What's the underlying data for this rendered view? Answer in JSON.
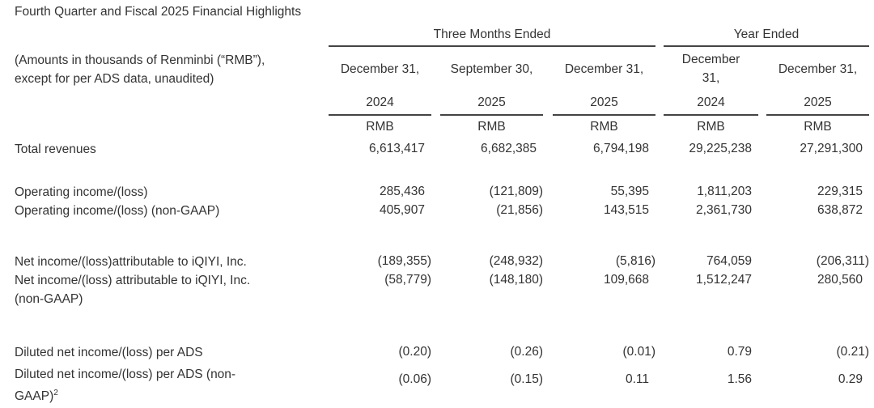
{
  "title": "Fourth Quarter and Fiscal 2025 Financial Highlights",
  "groups": [
    "Three Months Ended",
    "Year Ended"
  ],
  "note_line1": "(Amounts in thousands of Renminbi (“RMB”),",
  "note_line2": "except for per ADS data, unaudited)",
  "columns": [
    {
      "date": "December 31,",
      "year": "2024",
      "unit": "RMB"
    },
    {
      "date": "September 30,",
      "year": "2025",
      "unit": "RMB"
    },
    {
      "date": "December 31,",
      "year": "2025",
      "unit": "RMB"
    },
    {
      "date": "December 31,",
      "year": "2024",
      "unit": "RMB"
    },
    {
      "date": "December 31,",
      "year": "2025",
      "unit": "RMB"
    }
  ],
  "rows": [
    {
      "label": [
        "Total revenues"
      ],
      "values": [
        "6,613,417",
        "6,682,385",
        "6,794,198",
        "29,225,238",
        "27,291,300"
      ]
    },
    {
      "label": [
        "Operating income/(loss)"
      ],
      "values": [
        "285,436",
        "(121,809)",
        "55,395",
        "1,811,203",
        "229,315"
      ]
    },
    {
      "label": [
        "Operating income/(loss) (non-GAAP)"
      ],
      "values": [
        "405,907",
        "(21,856)",
        "143,515",
        "2,361,730",
        "638,872"
      ]
    },
    {
      "label": [
        "Net income/(loss)attributable to iQIYI, Inc."
      ],
      "values": [
        "(189,355)",
        "(248,932)",
        "(5,816)",
        "764,059",
        "(206,311)"
      ]
    },
    {
      "label": [
        "Net income/(loss) attributable to iQIYI, Inc.",
        "(non-GAAP)"
      ],
      "values": [
        "(58,779)",
        "(148,180)",
        "109,668",
        "1,512,247",
        "280,560"
      ]
    },
    {
      "label": [
        "Diluted net income/(loss) per ADS"
      ],
      "values": [
        "(0.20)",
        "(0.26)",
        "(0.01)",
        "0.79",
        "(0.21)"
      ]
    },
    {
      "label": [
        "Diluted net income/(loss) per ADS (non-",
        "GAAP)"
      ],
      "footnote": "2",
      "values": [
        "(0.06)",
        "(0.15)",
        "0.11",
        "1.56",
        "0.29"
      ]
    }
  ]
}
